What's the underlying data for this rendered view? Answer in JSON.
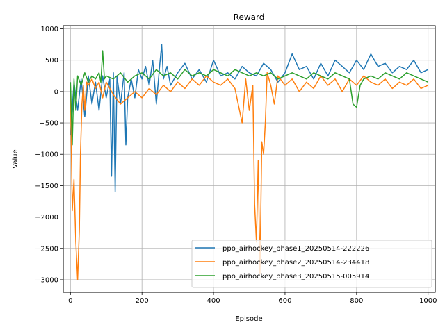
{
  "chart_data": {
    "type": "line",
    "title": "Reward",
    "xlabel": "Episode",
    "ylabel": "Value",
    "xlim": [
      -20,
      1020
    ],
    "ylim": [
      -3200,
      1050
    ],
    "xticks": [
      0,
      200,
      400,
      600,
      800,
      1000
    ],
    "yticks": [
      -3000,
      -2500,
      -2000,
      -1500,
      -1000,
      -500,
      0,
      500,
      1000
    ],
    "xtick_labels": [
      "0",
      "200",
      "400",
      "600",
      "800",
      "1000"
    ],
    "ytick_labels": [
      "−3000",
      "−2500",
      "−2000",
      "−1500",
      "−1000",
      "−500",
      "0",
      "500",
      "1000"
    ],
    "grid": true,
    "legend_position": "bottom-right",
    "series": [
      {
        "name": "ppo_airhockey_phase1_20250514-222226",
        "color": "#1f77b4",
        "x": [
          0,
          10,
          20,
          30,
          40,
          50,
          60,
          70,
          80,
          90,
          100,
          110,
          115,
          120,
          125,
          130,
          140,
          150,
          155,
          160,
          170,
          180,
          190,
          200,
          210,
          220,
          230,
          240,
          250,
          255,
          260,
          270,
          280,
          300,
          320,
          340,
          360,
          380,
          400,
          420,
          440,
          460,
          480,
          500,
          520,
          540,
          560,
          580,
          600,
          620,
          640,
          660,
          680,
          700,
          720,
          740,
          760,
          780,
          800,
          820,
          840,
          860,
          880,
          900,
          920,
          940,
          960,
          980,
          1000
        ],
        "y": [
          -700,
          150,
          -300,
          200,
          -400,
          250,
          -200,
          150,
          -300,
          250,
          -100,
          200,
          -1350,
          300,
          -1600,
          250,
          -200,
          300,
          -850,
          -100,
          200,
          -100,
          350,
          200,
          400,
          100,
          500,
          -200,
          450,
          750,
          200,
          400,
          100,
          300,
          450,
          200,
          350,
          150,
          500,
          250,
          300,
          200,
          400,
          300,
          250,
          450,
          350,
          150,
          300,
          600,
          350,
          400,
          200,
          450,
          250,
          500,
          400,
          300,
          500,
          350,
          600,
          400,
          450,
          300,
          400,
          350,
          500,
          300,
          350
        ]
      },
      {
        "name": "ppo_airhockey_phase2_20250514-234418",
        "color": "#ff7f0e",
        "x": [
          0,
          5,
          10,
          15,
          20,
          25,
          28,
          32,
          36,
          40,
          45,
          50,
          60,
          70,
          80,
          90,
          100,
          120,
          140,
          160,
          180,
          200,
          220,
          240,
          260,
          280,
          300,
          320,
          340,
          360,
          380,
          400,
          420,
          440,
          460,
          480,
          490,
          500,
          510,
          515,
          520,
          525,
          530,
          535,
          540,
          545,
          550,
          560,
          570,
          580,
          600,
          620,
          640,
          660,
          680,
          700,
          720,
          740,
          760,
          780,
          800,
          820,
          840,
          860,
          880,
          900,
          920,
          940,
          960,
          980,
          1000
        ],
        "y": [
          100,
          -1900,
          -1400,
          -2400,
          -3000,
          -2200,
          -1000,
          -200,
          100,
          -300,
          150,
          100,
          200,
          50,
          150,
          -100,
          150,
          -50,
          -200,
          -100,
          0,
          -100,
          50,
          -50,
          100,
          0,
          150,
          50,
          200,
          100,
          250,
          150,
          100,
          200,
          50,
          -500,
          200,
          -300,
          100,
          -1800,
          -2400,
          -1100,
          -2900,
          -800,
          -1000,
          -500,
          300,
          100,
          -200,
          250,
          100,
          200,
          0,
          150,
          50,
          250,
          100,
          200,
          0,
          200,
          100,
          250,
          150,
          100,
          200,
          50,
          150,
          100,
          200,
          50,
          100
        ]
      },
      {
        "name": "ppo_airhockey_phase3_20250515-005914",
        "color": "#2ca02c",
        "x": [
          0,
          5,
          10,
          15,
          20,
          30,
          40,
          50,
          60,
          70,
          80,
          85,
          90,
          95,
          100,
          120,
          140,
          160,
          180,
          200,
          220,
          240,
          260,
          280,
          300,
          320,
          340,
          360,
          380,
          400,
          420,
          440,
          460,
          480,
          500,
          520,
          540,
          560,
          580,
          600,
          620,
          640,
          660,
          680,
          700,
          720,
          740,
          760,
          780,
          790,
          800,
          810,
          820,
          840,
          860,
          880,
          900,
          920,
          940,
          960,
          980,
          1000
        ],
        "y": [
          150,
          -850,
          200,
          -300,
          250,
          100,
          300,
          150,
          250,
          200,
          300,
          150,
          650,
          200,
          250,
          200,
          300,
          150,
          250,
          300,
          200,
          350,
          250,
          300,
          200,
          350,
          250,
          300,
          250,
          350,
          300,
          250,
          350,
          300,
          250,
          300,
          250,
          300,
          200,
          250,
          300,
          250,
          200,
          300,
          250,
          200,
          300,
          250,
          200,
          -200,
          -250,
          100,
          200,
          250,
          200,
          300,
          250,
          200,
          300,
          250,
          200,
          150
        ]
      }
    ]
  }
}
